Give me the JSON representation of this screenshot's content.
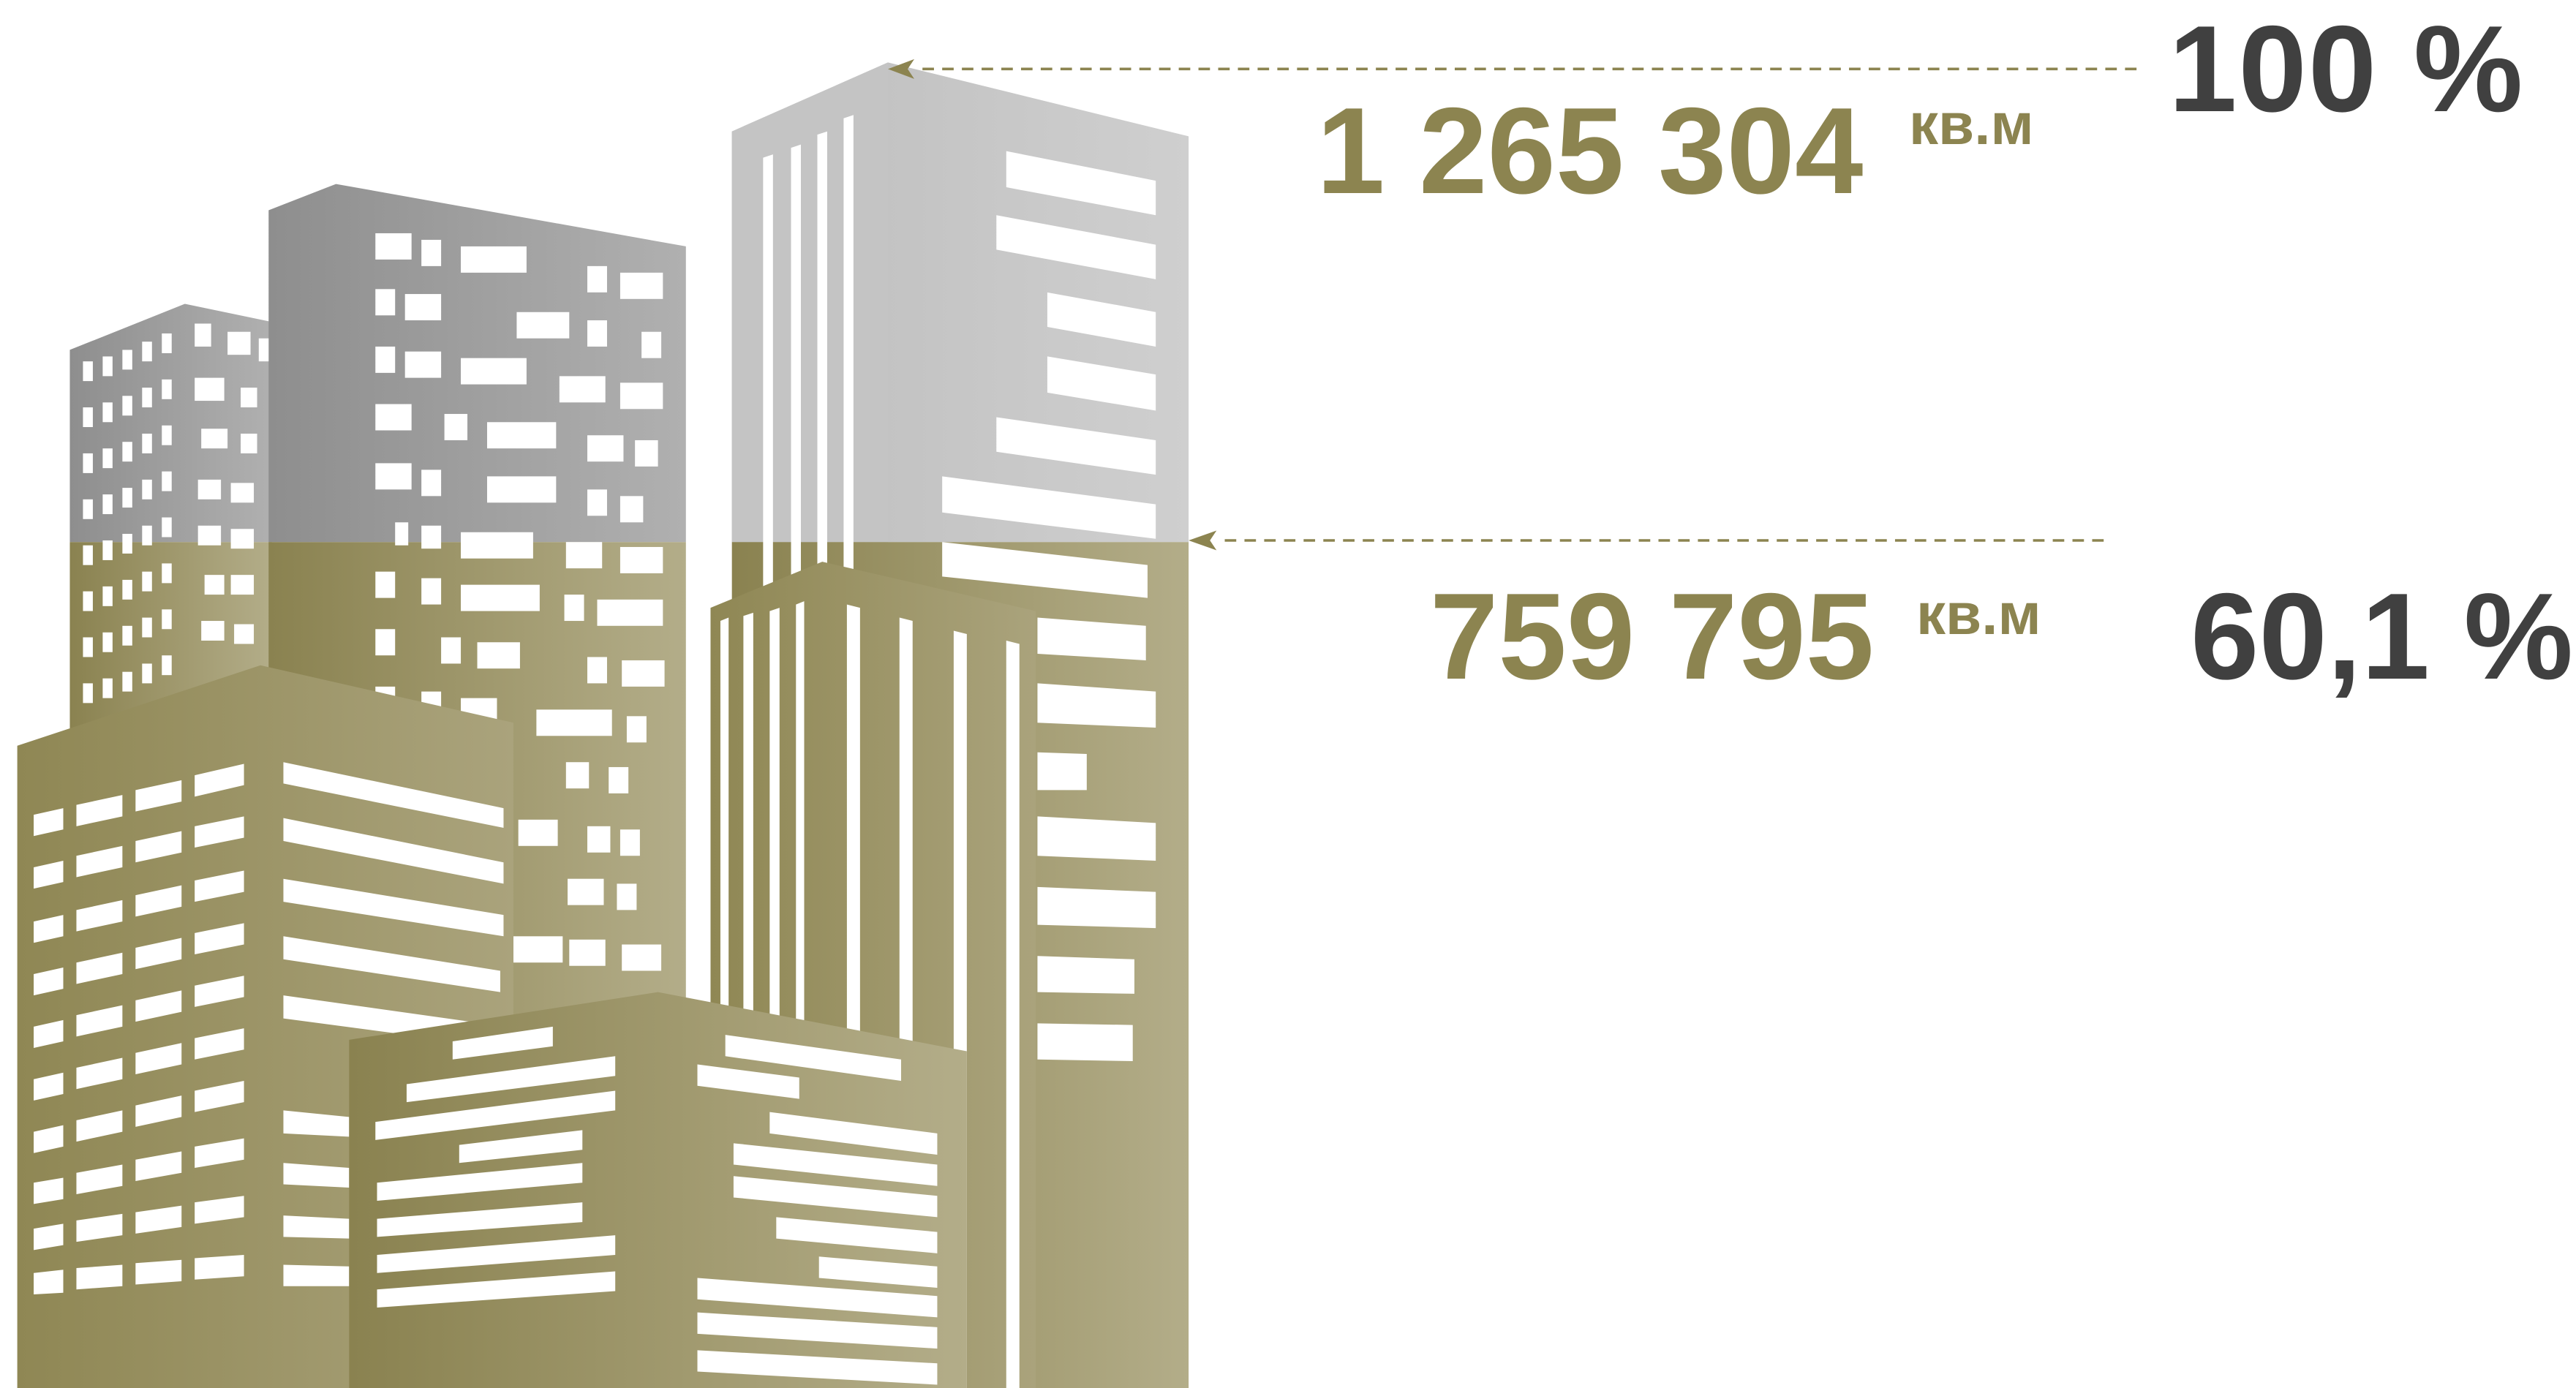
{
  "top_level": {
    "area_value": "1 265 304",
    "area_unit": "кв.м",
    "percent": "100 %"
  },
  "current_level": {
    "area_value": "759 795",
    "area_unit": "кв.м",
    "percent": "60,1 %",
    "fill_fraction": 0.601
  },
  "colors": {
    "olive": "#8c8450",
    "gray": "#9a9a9a",
    "dark_text": "#404040"
  }
}
